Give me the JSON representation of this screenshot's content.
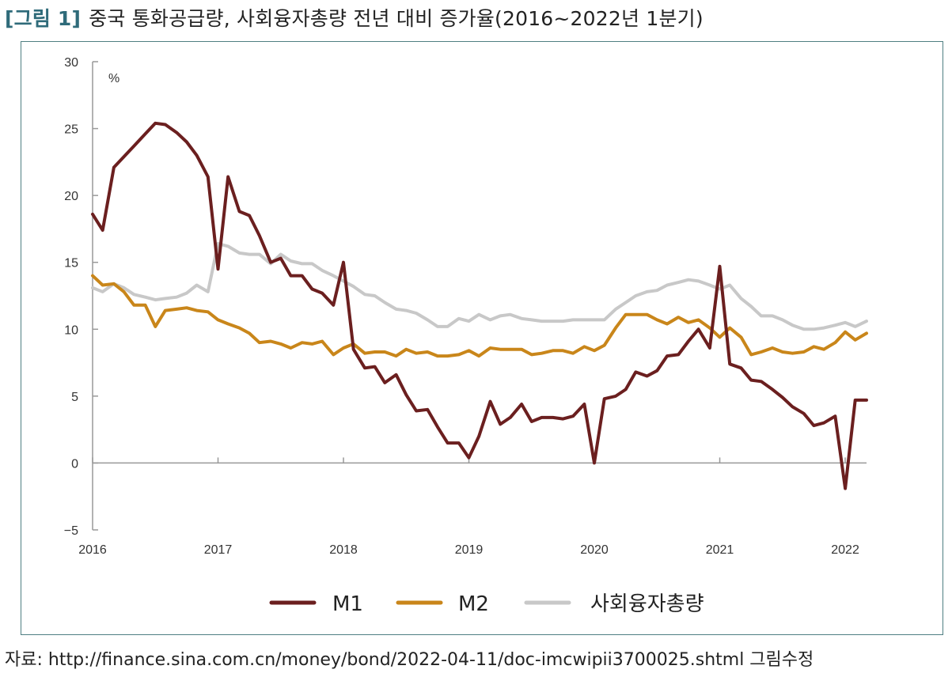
{
  "figure": {
    "tag": "[그림 1]",
    "title": "중국 통화공급량, 사회융자총량 전년 대비 증가율(2016~2022년 1분기)"
  },
  "source": "자료: http://finance.sina.com.cn/money/bond/2022-04-11/doc-imcwipii3700025.shtml 그림수정",
  "chart_data": {
    "type": "line",
    "unit_label": "%",
    "ylim": [
      -5,
      30
    ],
    "yticks": [
      {
        "value": -5,
        "label": "−5"
      },
      {
        "value": 0,
        "label": "0"
      },
      {
        "value": 5,
        "label": "5"
      },
      {
        "value": 10,
        "label": "10"
      },
      {
        "value": 15,
        "label": "15"
      },
      {
        "value": 20,
        "label": "20"
      },
      {
        "value": 25,
        "label": "25"
      },
      {
        "value": 30,
        "label": "30"
      }
    ],
    "xticks": [
      {
        "value": 2016,
        "label": "2016"
      },
      {
        "value": 2017,
        "label": "2017"
      },
      {
        "value": 2018,
        "label": "2018"
      },
      {
        "value": 2019,
        "label": "2019"
      },
      {
        "value": 2020,
        "label": "2020"
      },
      {
        "value": 2021,
        "label": "2021"
      },
      {
        "value": 2022,
        "label": "2022"
      }
    ],
    "xlim": [
      2016,
      2022.17
    ],
    "legend_position": "bottom",
    "grid": false,
    "series": [
      {
        "name": "M1",
        "color": "#6b1f1f",
        "x": [
          2016.0,
          2016.08,
          2016.17,
          2016.25,
          2016.33,
          2016.42,
          2016.5,
          2016.58,
          2016.67,
          2016.75,
          2016.83,
          2016.92,
          2017.0,
          2017.08,
          2017.17,
          2017.25,
          2017.33,
          2017.42,
          2017.5,
          2017.58,
          2017.67,
          2017.75,
          2017.83,
          2017.92,
          2018.0,
          2018.08,
          2018.17,
          2018.25,
          2018.33,
          2018.42,
          2018.5,
          2018.58,
          2018.67,
          2018.75,
          2018.83,
          2018.92,
          2019.0,
          2019.08,
          2019.17,
          2019.25,
          2019.33,
          2019.42,
          2019.5,
          2019.58,
          2019.67,
          2019.75,
          2019.83,
          2019.92,
          2020.0,
          2020.08,
          2020.17,
          2020.25,
          2020.33,
          2020.42,
          2020.5,
          2020.58,
          2020.67,
          2020.75,
          2020.83,
          2020.92,
          2021.0,
          2021.08,
          2021.17,
          2021.25,
          2021.33,
          2021.42,
          2021.5,
          2021.58,
          2021.67,
          2021.75,
          2021.83,
          2021.92,
          2022.0,
          2022.08,
          2022.17
        ],
        "y": [
          18.6,
          17.4,
          22.1,
          22.9,
          23.7,
          24.6,
          25.4,
          25.3,
          24.7,
          24.0,
          23.0,
          21.4,
          14.5,
          21.4,
          18.8,
          18.5,
          17.0,
          15.0,
          15.3,
          14.0,
          14.0,
          13.0,
          12.7,
          11.8,
          15.0,
          8.5,
          7.1,
          7.2,
          6.0,
          6.6,
          5.1,
          3.9,
          4.0,
          2.7,
          1.5,
          1.5,
          0.4,
          2.0,
          4.6,
          2.9,
          3.4,
          4.4,
          3.1,
          3.4,
          3.4,
          3.3,
          3.5,
          4.4,
          0.0,
          4.8,
          5.0,
          5.5,
          6.8,
          6.5,
          6.9,
          8.0,
          8.1,
          9.1,
          10.0,
          8.6,
          14.7,
          7.4,
          7.1,
          6.2,
          6.1,
          5.5,
          4.9,
          4.2,
          3.7,
          2.8,
          3.0,
          3.5,
          -1.9,
          4.7,
          4.7
        ]
      },
      {
        "name": "M2",
        "color": "#c9861a",
        "x": [
          2016.0,
          2016.08,
          2016.17,
          2016.25,
          2016.33,
          2016.42,
          2016.5,
          2016.58,
          2016.67,
          2016.75,
          2016.83,
          2016.92,
          2017.0,
          2017.08,
          2017.17,
          2017.25,
          2017.33,
          2017.42,
          2017.5,
          2017.58,
          2017.67,
          2017.75,
          2017.83,
          2017.92,
          2018.0,
          2018.08,
          2018.17,
          2018.25,
          2018.33,
          2018.42,
          2018.5,
          2018.58,
          2018.67,
          2018.75,
          2018.83,
          2018.92,
          2019.0,
          2019.08,
          2019.17,
          2019.25,
          2019.33,
          2019.42,
          2019.5,
          2019.58,
          2019.67,
          2019.75,
          2019.83,
          2019.92,
          2020.0,
          2020.08,
          2020.17,
          2020.25,
          2020.33,
          2020.42,
          2020.5,
          2020.58,
          2020.67,
          2020.75,
          2020.83,
          2020.92,
          2021.0,
          2021.08,
          2021.17,
          2021.25,
          2021.33,
          2021.42,
          2021.5,
          2021.58,
          2021.67,
          2021.75,
          2021.83,
          2021.92,
          2022.0,
          2022.08,
          2022.17
        ],
        "y": [
          14.0,
          13.3,
          13.4,
          12.8,
          11.8,
          11.8,
          10.2,
          11.4,
          11.5,
          11.6,
          11.4,
          11.3,
          10.7,
          10.4,
          10.1,
          9.7,
          9.0,
          9.1,
          8.9,
          8.6,
          9.0,
          8.9,
          9.1,
          8.1,
          8.6,
          8.9,
          8.2,
          8.3,
          8.3,
          8.0,
          8.5,
          8.2,
          8.3,
          8.0,
          8.0,
          8.1,
          8.4,
          8.0,
          8.6,
          8.5,
          8.5,
          8.5,
          8.1,
          8.2,
          8.4,
          8.4,
          8.2,
          8.7,
          8.4,
          8.8,
          10.1,
          11.1,
          11.1,
          11.1,
          10.7,
          10.4,
          10.9,
          10.5,
          10.7,
          10.1,
          9.4,
          10.1,
          9.4,
          8.1,
          8.3,
          8.6,
          8.3,
          8.2,
          8.3,
          8.7,
          8.5,
          9.0,
          9.8,
          9.2,
          9.7
        ]
      },
      {
        "name": "사회융자총량",
        "color": "#c8c8c8",
        "x": [
          2016.0,
          2016.08,
          2016.17,
          2016.25,
          2016.33,
          2016.42,
          2016.5,
          2016.58,
          2016.67,
          2016.75,
          2016.83,
          2016.92,
          2017.0,
          2017.08,
          2017.17,
          2017.25,
          2017.33,
          2017.42,
          2017.5,
          2017.58,
          2017.67,
          2017.75,
          2017.83,
          2017.92,
          2018.0,
          2018.08,
          2018.17,
          2018.25,
          2018.33,
          2018.42,
          2018.5,
          2018.58,
          2018.67,
          2018.75,
          2018.83,
          2018.92,
          2019.0,
          2019.08,
          2019.17,
          2019.25,
          2019.33,
          2019.42,
          2019.5,
          2019.58,
          2019.67,
          2019.75,
          2019.83,
          2019.92,
          2020.0,
          2020.08,
          2020.17,
          2020.25,
          2020.33,
          2020.42,
          2020.5,
          2020.58,
          2020.67,
          2020.75,
          2020.83,
          2020.92,
          2021.0,
          2021.08,
          2021.17,
          2021.25,
          2021.33,
          2021.42,
          2021.5,
          2021.58,
          2021.67,
          2021.75,
          2021.83,
          2021.92,
          2022.0,
          2022.08,
          2022.17
        ],
        "y": [
          13.1,
          12.8,
          13.4,
          13.1,
          12.6,
          12.4,
          12.2,
          12.3,
          12.4,
          12.7,
          13.3,
          12.8,
          16.4,
          16.2,
          15.7,
          15.6,
          15.6,
          14.9,
          15.6,
          15.1,
          14.9,
          14.9,
          14.4,
          14.0,
          13.6,
          13.2,
          12.6,
          12.5,
          12.0,
          11.5,
          11.4,
          11.2,
          10.7,
          10.2,
          10.2,
          10.8,
          10.6,
          11.1,
          10.7,
          11.0,
          11.1,
          10.8,
          10.7,
          10.6,
          10.6,
          10.6,
          10.7,
          10.7,
          10.7,
          10.7,
          11.5,
          12.0,
          12.5,
          12.8,
          12.9,
          13.3,
          13.5,
          13.7,
          13.6,
          13.3,
          13.0,
          13.3,
          12.3,
          11.7,
          11.0,
          11.0,
          10.7,
          10.3,
          10.0,
          10.0,
          10.1,
          10.3,
          10.5,
          10.2,
          10.6
        ]
      }
    ]
  }
}
